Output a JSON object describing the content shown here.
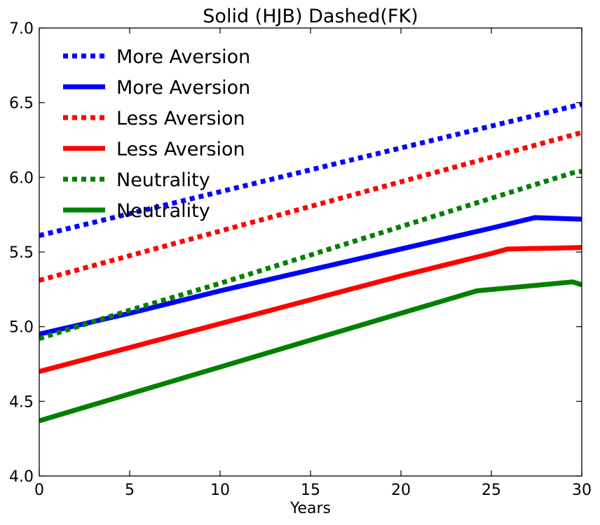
{
  "chart_data": {
    "type": "line",
    "title": "Solid (HJB) Dashed(FK)",
    "xlabel": "Years",
    "ylabel": "",
    "xlim": [
      0,
      30
    ],
    "ylim": [
      4.0,
      7.0
    ],
    "xticks": [
      "0",
      "5",
      "10",
      "15",
      "20",
      "25",
      "30"
    ],
    "yticks": [
      "4.0",
      "4.5",
      "5.0",
      "5.5",
      "6.0",
      "6.5",
      "7.0"
    ],
    "grid": false,
    "legend_position": "top-left",
    "series": [
      {
        "name": "More Aversion",
        "style": "dotted",
        "color": "#0000ff",
        "x": [
          0,
          30
        ],
        "y": [
          5.61,
          6.49
        ]
      },
      {
        "name": "More Aversion",
        "style": "solid",
        "color": "#0000ff",
        "x": [
          0,
          5,
          7,
          10,
          15,
          20,
          25,
          27.4,
          30
        ],
        "y": [
          4.95,
          5.09,
          5.15,
          5.24,
          5.38,
          5.52,
          5.66,
          5.73,
          5.72
        ]
      },
      {
        "name": "Less Aversion",
        "style": "dotted",
        "color": "#ff0000",
        "x": [
          0,
          30
        ],
        "y": [
          5.31,
          6.3
        ]
      },
      {
        "name": "Less Aversion",
        "style": "solid",
        "color": "#ff0000",
        "x": [
          0,
          5,
          10,
          15,
          20,
          25,
          25.9,
          30
        ],
        "y": [
          4.7,
          4.86,
          5.02,
          5.18,
          5.34,
          5.49,
          5.52,
          5.53
        ]
      },
      {
        "name": "Neutrality",
        "style": "dotted",
        "color": "#008000",
        "x": [
          0,
          5,
          10,
          15,
          20,
          25,
          29.5,
          30
        ],
        "y": [
          4.92,
          5.11,
          5.29,
          5.48,
          5.67,
          5.86,
          6.03,
          6.04
        ]
      },
      {
        "name": "Neutrality",
        "style": "solid",
        "color": "#008000",
        "x": [
          0,
          5,
          10,
          15,
          20,
          24.2,
          29.5,
          30
        ],
        "y": [
          4.37,
          4.55,
          4.73,
          4.91,
          5.09,
          5.24,
          5.3,
          5.28
        ]
      }
    ]
  }
}
